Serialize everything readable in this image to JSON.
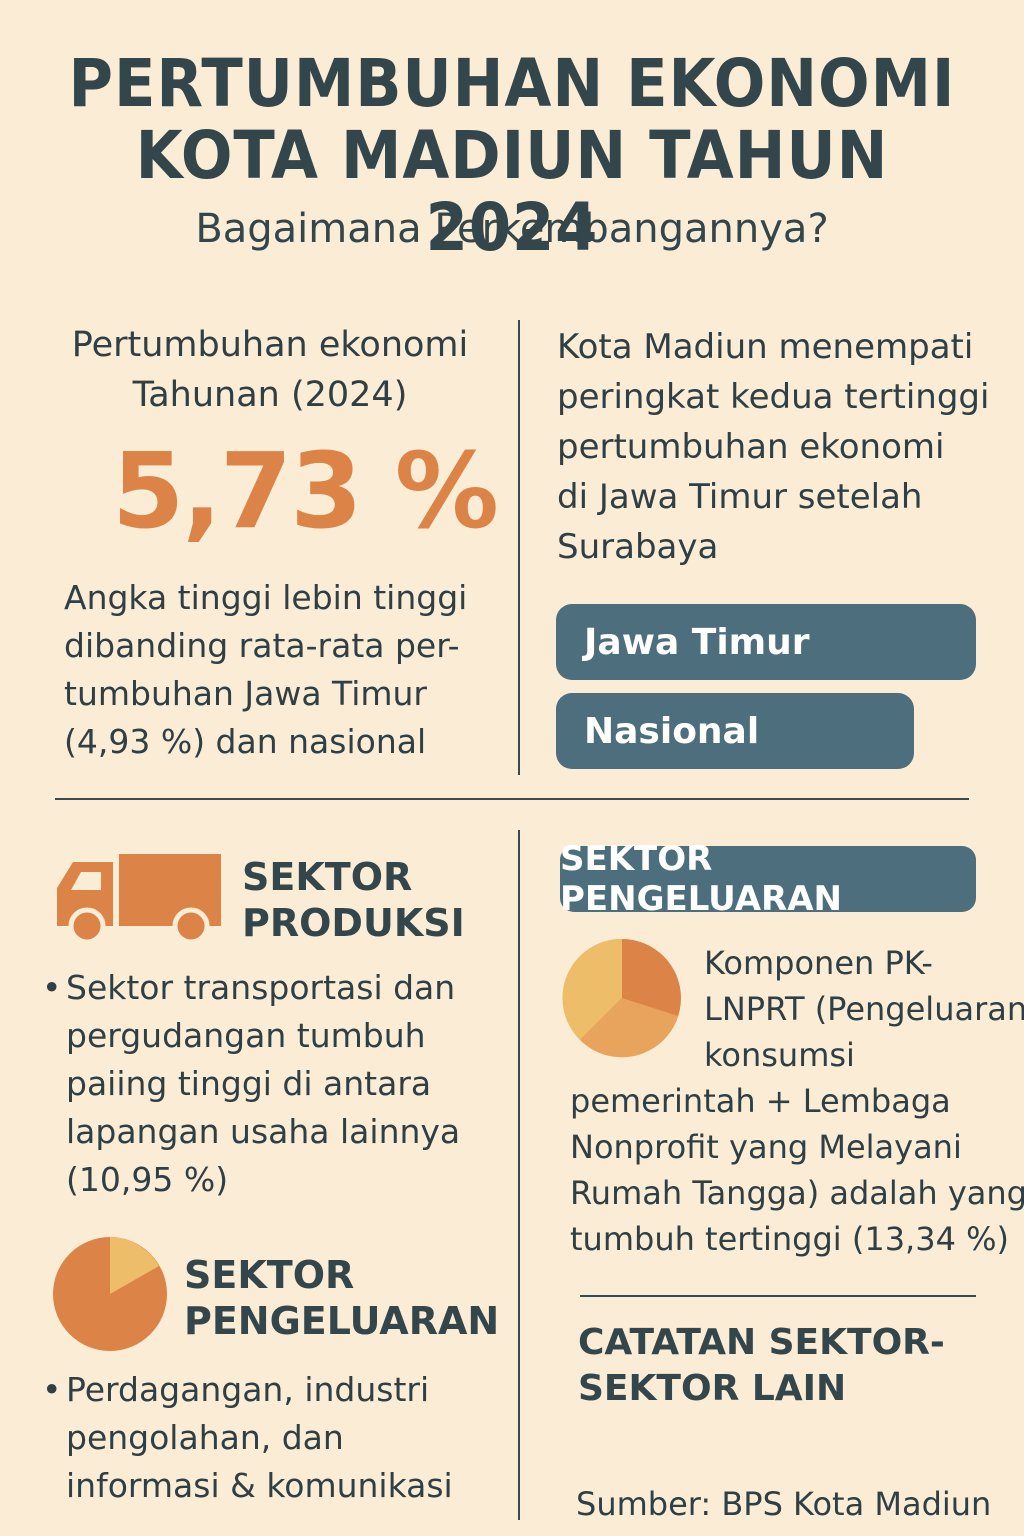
{
  "header": {
    "title_line1": "PERTUMBUHAN EKONOMI",
    "title_line2": "KOTA MADIUN TAHUN 2024",
    "subtitle": "Bagaimana Perkembangannya?"
  },
  "growth": {
    "heading_line1": "Pertumbuhan ekonomi",
    "heading_line2": "Tahunan (2024)",
    "value": "5,73 %",
    "desc_lines": [
      "Angka tinggi lebin tinggi",
      "dibanding rata-rata per-",
      "tumbuhan Jawa Timur",
      "(4,93 %) dan nasional"
    ]
  },
  "ranking": {
    "desc_lines": [
      "Kota Madiun menempati",
      "peringkat kedua tertinggi",
      "pertumbuhan ekonomi",
      "di Jawa Timur setelah",
      "Surabaya"
    ],
    "bars": [
      {
        "label": "Jawa Timur"
      },
      {
        "label": "Nasional"
      }
    ]
  },
  "produksi": {
    "icon": "truck-icon",
    "heading_line1": "SEKTOR",
    "heading_line2": "PRODUKSI",
    "bullet_lines": [
      "Sektor transportasi dan",
      "pergudangan tumbuh",
      "paiing tinggi di antara",
      "lapangan usaha lainnya",
      "(10,95 %)"
    ]
  },
  "pengeluaran_left": {
    "icon": "pie-chart-icon",
    "heading_line1": "SEKTOR",
    "heading_line2": "PENGELUARAN",
    "bullet_lines": [
      "Perdagangan, industri",
      "pengolahan, dan",
      "informasi & komunikasi"
    ]
  },
  "pengeluaran_right": {
    "tag": "SEKTOR PENGELUARAN",
    "icon": "pie-chart-icon",
    "desc_lines": [
      "Komponen PK-",
      "LNPRT (Pengeluaran",
      "konsumsi",
      "pemerintah + Lembaga",
      "Nonprofit yang Melayani",
      "Rumah Tangga) adalah yang",
      "tumbuh tertinggi (13,34 %)"
    ]
  },
  "catatan": {
    "heading_line1": "CATATAN SEKTOR-",
    "heading_line2": "SEKTOR LAIN"
  },
  "source": "Sumber: BPS Kota Madiun",
  "colors": {
    "background": "#fbecd6",
    "accent_orange": "#dc8447",
    "accent_light": "#eebd6a",
    "pill_blue": "#4d6e7c",
    "text_dark": "#33464b"
  }
}
